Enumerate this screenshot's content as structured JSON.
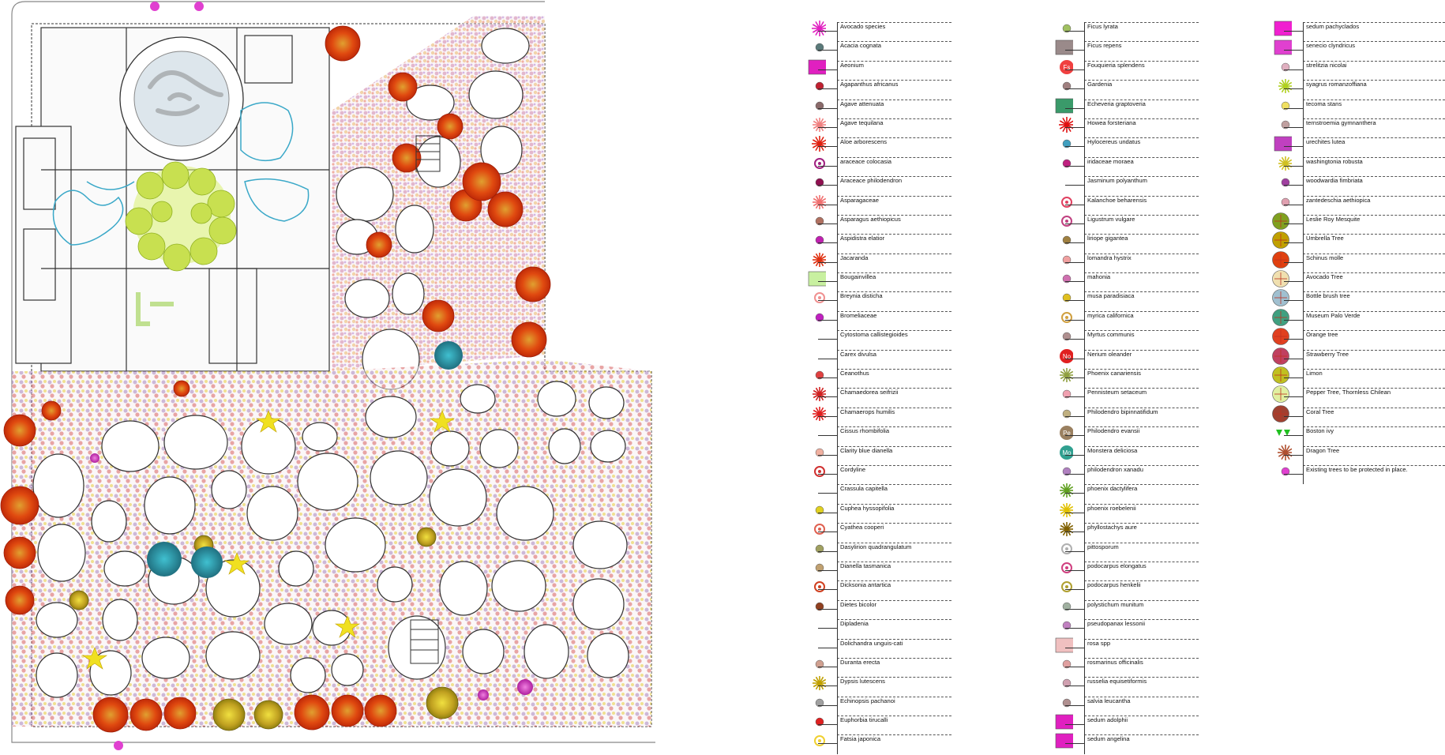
{
  "legend": {
    "column_1": [
      {
        "label": "Avocado species",
        "icon": "magenta-starburst",
        "color": "#e020c0"
      },
      {
        "label": "Acacia cognata",
        "icon": "gray-dot",
        "color": "#5a7a7a"
      },
      {
        "label": "Aeonium",
        "icon": "magenta-square",
        "color": "#e020c0"
      },
      {
        "label": "Agapanthus africanus",
        "icon": "red-tick",
        "color": "#c02030"
      },
      {
        "label": "Agave attenuata",
        "icon": "gray-dot",
        "color": "#8a6a6a"
      },
      {
        "label": "Agave tequilana",
        "icon": "pink-star",
        "color": "#f08080"
      },
      {
        "label": "Aloe arborescens",
        "icon": "red-starburst",
        "color": "#e02010"
      },
      {
        "label": "araceace colocasia",
        "icon": "purple-cross-dot",
        "color": "#a02080"
      },
      {
        "label": "Araceace philodendron",
        "icon": "purple-dot",
        "color": "#901050"
      },
      {
        "label": "Asparagaceae",
        "icon": "pink-star",
        "color": "#f07070"
      },
      {
        "label": "Asparagus aethiopicus",
        "icon": "brown-dot",
        "color": "#b07060"
      },
      {
        "label": "Aspidistra elatior",
        "icon": "magenta-dot",
        "color": "#c020b0"
      },
      {
        "label": "Jacaranda",
        "icon": "red-star-tree",
        "color": "#e03010"
      },
      {
        "label": "Bougainvillea",
        "icon": "lime-squares",
        "color": "#c8f0a0"
      },
      {
        "label": "Breynia disticha",
        "icon": "pink-ring",
        "color": "#f09090"
      },
      {
        "label": "Bromeliaceae",
        "icon": "magenta-dot",
        "color": "#c020c0"
      },
      {
        "label": "Cytostoma callistegioides",
        "icon": "none",
        "color": "#333333"
      },
      {
        "label": "Carex divulsa",
        "icon": "none",
        "color": "#333333"
      },
      {
        "label": "Ceanothus",
        "icon": "red-flower",
        "color": "#e04040"
      },
      {
        "label": "Chamaedorea seifrizii",
        "icon": "red-palm",
        "color": "#d02020"
      },
      {
        "label": "Chamaerops humilis",
        "icon": "red-palm",
        "color": "#e02020"
      },
      {
        "label": "Cissus rhombifolia",
        "icon": "none",
        "color": "#333333"
      },
      {
        "label": "Clarity blue dianella",
        "icon": "peach-dot",
        "color": "#f0b0a0"
      },
      {
        "label": "Cordyline",
        "icon": "red-ring",
        "color": "#d03030"
      },
      {
        "label": "Crassula capitella",
        "icon": "none",
        "color": "#333333"
      },
      {
        "label": "Cuphea hyssopifolia",
        "icon": "yellow-dot",
        "color": "#e0d020"
      },
      {
        "label": "Cyathea cooperi",
        "icon": "cross-circle",
        "color": "#e06050"
      },
      {
        "label": "Dasylirion quadrangulatum",
        "icon": "olive-dot",
        "color": "#a0a060"
      },
      {
        "label": "Dianella tasmanica",
        "icon": "tan-dot",
        "color": "#c0a070"
      },
      {
        "label": "Dicksonia antartica",
        "icon": "cross-circle",
        "color": "#d04020"
      },
      {
        "label": "Dietes bicolor",
        "icon": "brown-dot",
        "color": "#904020"
      },
      {
        "label": "Dipladenia",
        "icon": "none",
        "color": "#333333"
      },
      {
        "label": "Dolichandra unguis-cati",
        "icon": "none",
        "color": "#333333"
      },
      {
        "label": "Duranta erecta",
        "icon": "tan-dot",
        "color": "#d0a090"
      },
      {
        "label": "Dypsis lutescens",
        "icon": "yellow-palm",
        "color": "#c0a000"
      },
      {
        "label": "Echinopsis pachanoi",
        "icon": "gray-dot",
        "color": "#a0a0a0"
      },
      {
        "label": "Euphorbia tirucalli",
        "icon": "red-flower",
        "color": "#e02020"
      },
      {
        "label": "Fatsia japonica",
        "icon": "yellow-ring",
        "color": "#f0d030"
      }
    ],
    "column_2": [
      {
        "label": "Ficus lyrata",
        "icon": "lime-dot",
        "color": "#a0c060"
      },
      {
        "label": "Ficus repens",
        "icon": "gray-rect",
        "color": "#9a8a8a"
      },
      {
        "label": "Fouquieria splendens",
        "icon": "fs-badge",
        "badge": "Fs",
        "color": "#f04040"
      },
      {
        "label": "Gardenia",
        "icon": "gray-heart",
        "color": "#a08080"
      },
      {
        "label": "Echeveria graptoveria",
        "icon": "green-rect",
        "color": "#3a9a6a"
      },
      {
        "label": "Howea forsteriana",
        "icon": "red-starburst",
        "color": "#e01010"
      },
      {
        "label": "Hylocereus undatus",
        "icon": "blue-dot",
        "color": "#40a0c0"
      },
      {
        "label": "iridaceae moraea",
        "icon": "magenta-dot",
        "color": "#c02080"
      },
      {
        "label": "Jasminum polyanthum",
        "icon": "none",
        "color": "#333333"
      },
      {
        "label": "Kalanchoe beharensis",
        "icon": "red-cross",
        "color": "#e04060"
      },
      {
        "label": "Ligustrum vulgare",
        "icon": "purple-ring",
        "color": "#c04080"
      },
      {
        "label": "liriope gigantea",
        "icon": "brown-leaf",
        "color": "#a08040"
      },
      {
        "label": "lomandra hystrix",
        "icon": "pink-dot",
        "color": "#f0a0a0"
      },
      {
        "label": "mahonia",
        "icon": "pink-flower",
        "color": "#d070b0"
      },
      {
        "label": "musa paradisiaca",
        "icon": "yellow-dot",
        "color": "#e0c020"
      },
      {
        "label": "myrica californica",
        "icon": "olive-ring",
        "color": "#d0a040"
      },
      {
        "label": "Myrtus communis",
        "icon": "gray-dot",
        "color": "#b09090"
      },
      {
        "label": "Nerium oleander",
        "icon": "no-badge",
        "badge": "No",
        "color": "#e02020"
      },
      {
        "label": "Phoenix canariensis",
        "icon": "green-palm",
        "color": "#90a040"
      },
      {
        "label": "Pennisteum setaceum",
        "icon": "pink-dot",
        "color": "#f0a0b0"
      },
      {
        "label": "Philodendro bipinnatifidum",
        "icon": "tan-blob",
        "color": "#c0b080"
      },
      {
        "label": "Philodendro evansii",
        "icon": "pe-badge",
        "badge": "Pe",
        "color": "#9a8060"
      },
      {
        "label": "Monstera deliciosa",
        "icon": "mo-badge",
        "badge": "Mo",
        "color": "#30a090"
      },
      {
        "label": "philodendron xanadu",
        "icon": "purple-dot",
        "color": "#b080c0"
      },
      {
        "label": "phoenix dactylifera",
        "icon": "green-star",
        "color": "#60a020"
      },
      {
        "label": "phoenix roebelenii",
        "icon": "yellow-star",
        "color": "#e0c000"
      },
      {
        "label": "phyllostachys aure",
        "icon": "olive-star",
        "color": "#806000"
      },
      {
        "label": "pittosporum",
        "icon": "gray-ring",
        "color": "#b0b0b0"
      },
      {
        "label": "podocarpus elongatus",
        "icon": "purple-ring",
        "color": "#d04080"
      },
      {
        "label": "podocarpus henkelii",
        "icon": "olive-ring",
        "color": "#b0a030"
      },
      {
        "label": "polystichum munitum",
        "icon": "gray-dot",
        "color": "#a0b0a0"
      },
      {
        "label": "pseudopanax lessonii",
        "icon": "purple-dot",
        "color": "#c080c0"
      },
      {
        "label": "rosa spp",
        "icon": "pink-square",
        "color": "#f0c0c0"
      },
      {
        "label": "rosmarinus officinalis",
        "icon": "pink-dot",
        "color": "#e0a0a0"
      },
      {
        "label": "russelia equisetiformis",
        "icon": "pink-dot",
        "color": "#d0a0b0"
      },
      {
        "label": "salvia leucantha",
        "icon": "gray-dot",
        "color": "#b09090"
      },
      {
        "label": "sedum adolphii",
        "icon": "magenta-square",
        "color": "#e020c0"
      },
      {
        "label": "sedum angelina",
        "icon": "magenta-square",
        "color": "#e020c0"
      }
    ],
    "column_3": [
      {
        "label": "sedum pachyclados",
        "icon": "magenta-square",
        "color": "#f020d0"
      },
      {
        "label": "senecio clyndricus",
        "icon": "magenta-square",
        "color": "#e040d0"
      },
      {
        "label": "strelitzia nicolai",
        "icon": "pink-dot",
        "color": "#e0b0c0"
      },
      {
        "label": "syagrus romanzoffiana",
        "icon": "lime-palm",
        "color": "#b0d020"
      },
      {
        "label": "tecoma stans",
        "icon": "yellow-flower",
        "color": "#f0e060"
      },
      {
        "label": "ternstroemia gymnanthera",
        "icon": "tan-dot",
        "color": "#c0a0a0"
      },
      {
        "label": "urechites lutea",
        "icon": "purple-square",
        "color": "#c040c0"
      },
      {
        "label": "washingtonia robusta",
        "icon": "yellow-palm",
        "color": "#d0c020"
      },
      {
        "label": "woodwardia fimbriata",
        "icon": "purple-dot",
        "color": "#a040a0"
      },
      {
        "label": "zantedeschia aethiopica",
        "icon": "pink-dot",
        "color": "#e0a0b0"
      },
      {
        "label": "Leslie Roy Mesquite",
        "icon": "green-tree",
        "color": "#80a020"
      },
      {
        "label": "Umbrella Tree",
        "icon": "olive-tree",
        "color": "#c0a000"
      },
      {
        "label": "Schinus molle",
        "icon": "red-tree",
        "color": "#e04010"
      },
      {
        "label": "Avocado Tree",
        "icon": "cream-tree",
        "color": "#f0e0b0"
      },
      {
        "label": "Bottle brush tree",
        "icon": "blue-tree",
        "color": "#a0c0d0"
      },
      {
        "label": "Museum Palo Verde",
        "icon": "teal-tree",
        "color": "#40a080"
      },
      {
        "label": "Orange tree",
        "icon": "red-dot-tree",
        "color": "#e04020"
      },
      {
        "label": "Strawberry Tree",
        "icon": "purple-tree",
        "color": "#c04060"
      },
      {
        "label": "Limon",
        "icon": "lime-tree",
        "color": "#c0c020"
      },
      {
        "label": "Pepper Tree, Thornless Chilean",
        "icon": "pale-tree",
        "color": "#e0f0a0"
      },
      {
        "label": "Coral Tree",
        "icon": "coral-tree",
        "color": "#a04030"
      },
      {
        "label": "Boston ivy",
        "icon": "green-triangles",
        "color": "#20c020"
      },
      {
        "label": "Dragon Tree",
        "icon": "brown-starburst",
        "color": "#b05030"
      },
      {
        "label": "Existing trees to be protected in place.",
        "icon": "magenta-flower",
        "color": "#e040d0"
      }
    ]
  }
}
